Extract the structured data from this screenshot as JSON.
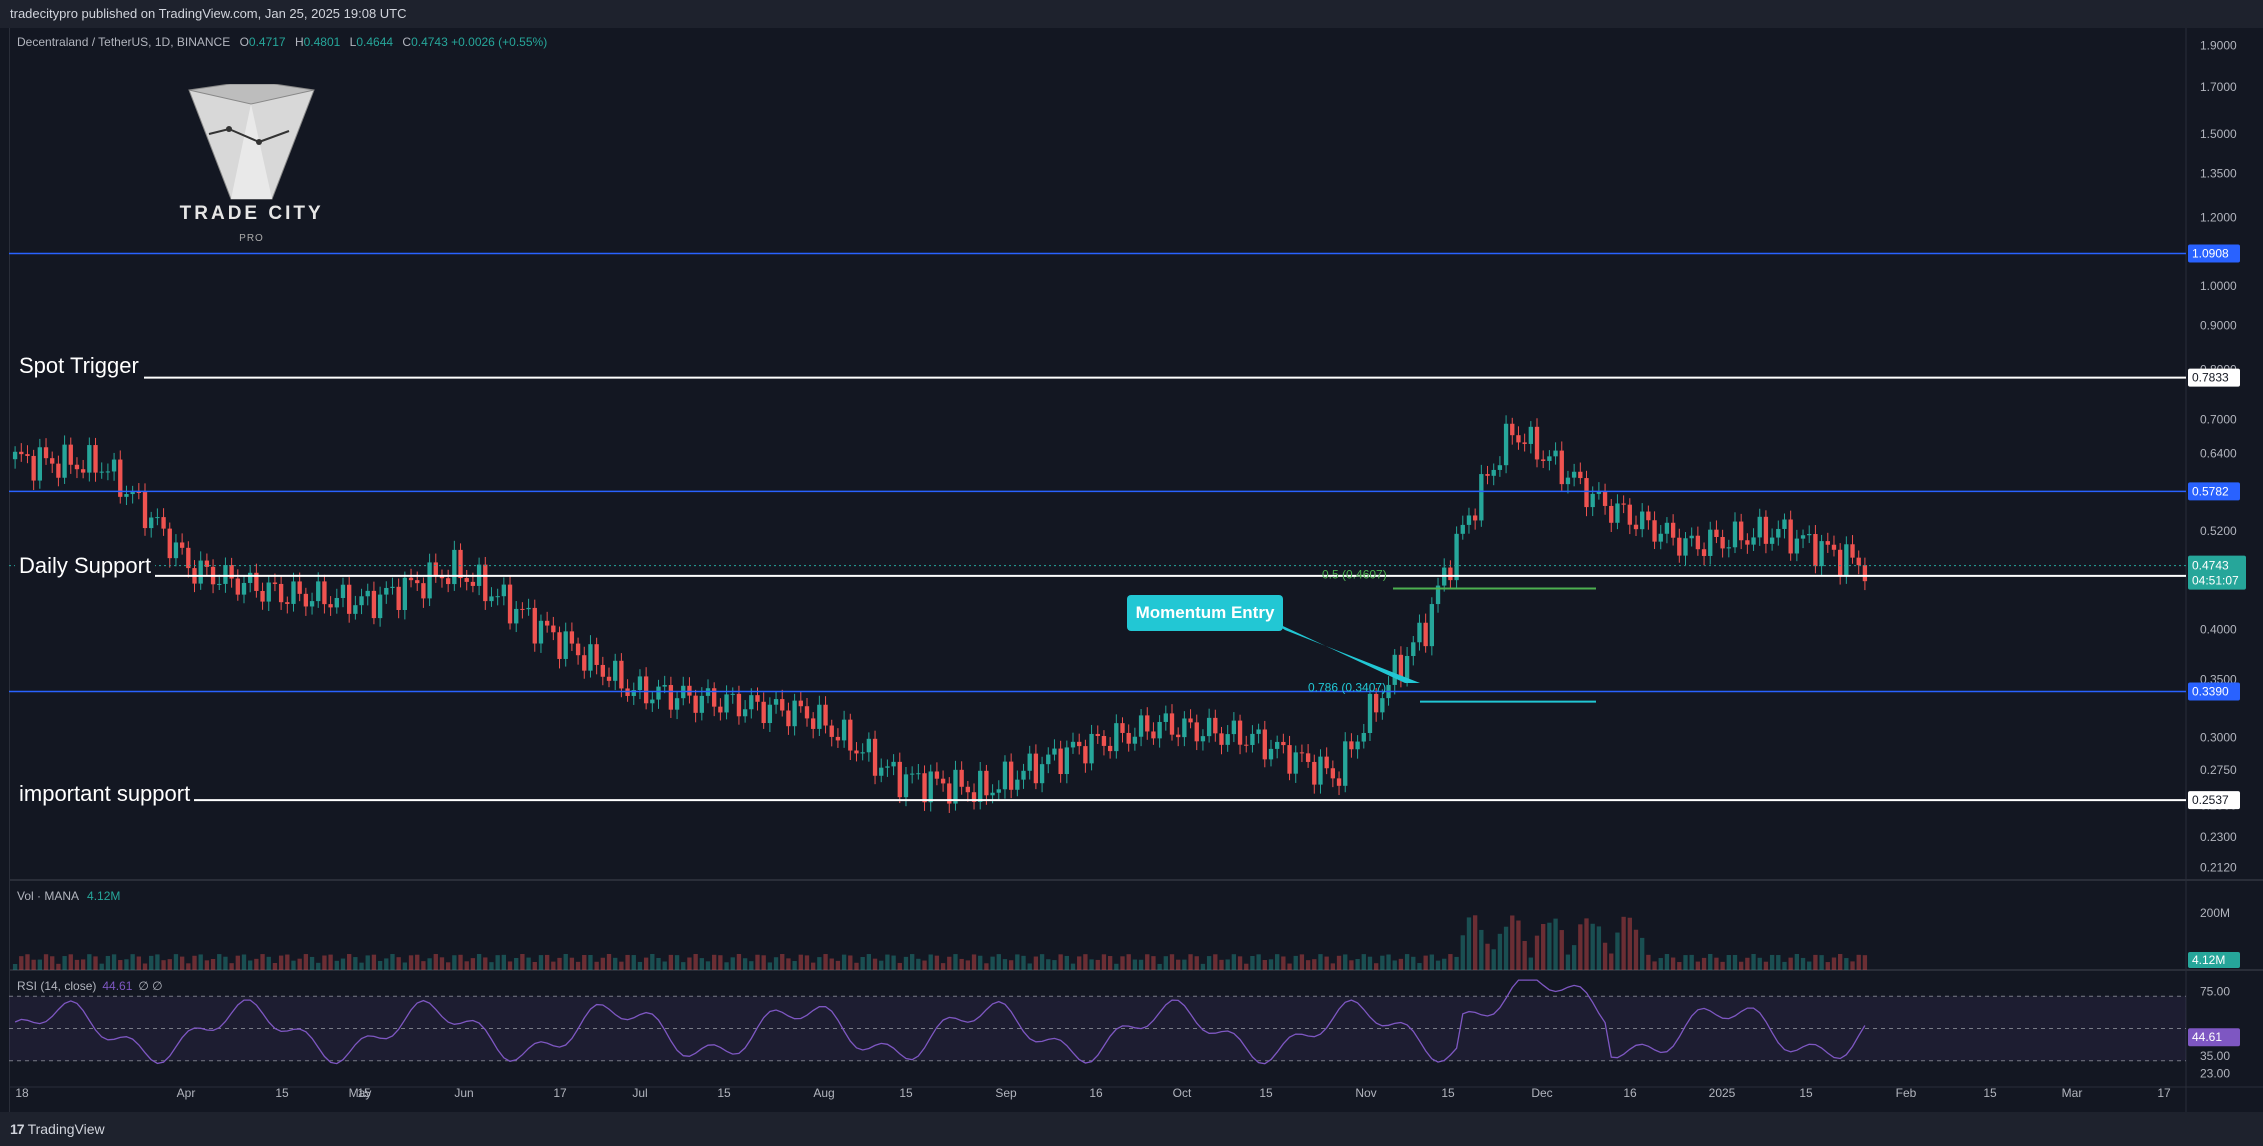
{
  "header": {
    "published_line": "tradecitypro published on TradingView.com, Jan 25, 2025 19:08 UTC"
  },
  "legend": {
    "symbol_line": "Decentraland / TetherUS, 1D, BINANCE",
    "open_label": "O",
    "open": "0.4717",
    "high_label": "H",
    "high": "0.4801",
    "low_label": "L",
    "low": "0.4644",
    "close_label": "C",
    "close": "0.4743",
    "change": "+0.0026 (+0.55%)"
  },
  "logo": {
    "name": "TRADE CITY",
    "suffix": "PRO"
  },
  "annotations": {
    "spot_trigger": "Spot Trigger",
    "daily_support": "Daily Support",
    "important_support": "important support",
    "momentum_entry": "Momentum Entry",
    "fib_05": "0.5 (0.4607)",
    "fib_0786": "0.786 (0.3407)"
  },
  "volume_pane": {
    "label": "Vol · MANA",
    "value": "4.12M",
    "axis_tick": "200M",
    "badge": "4.12M"
  },
  "rsi_pane": {
    "label": "RSI (14, close)",
    "value": "44.61",
    "extra": "∅ ∅",
    "ticks": [
      "75.00",
      "35.00",
      "23.00"
    ],
    "badge": "44.61"
  },
  "footer": {
    "brand": "TradingView",
    "mark": "17"
  },
  "colors": {
    "background": "#131722",
    "up": "#26a69a",
    "down": "#ef5350",
    "blue_line": "#2962ff",
    "white_line": "#ffffff",
    "rsi": "#7e57c2",
    "callout": "#22c7d4"
  },
  "chart_data": {
    "type": "candlestick",
    "symbol": "Decentraland / TetherUS, 1D, BINANCE",
    "y_scale": "log",
    "y_ticks": [
      "1.9000",
      "1.7000",
      "1.5000",
      "1.3500",
      "1.2000",
      "1.0000",
      "0.9000",
      "0.8000",
      "0.7000",
      "0.6400",
      "0.5800",
      "0.5200",
      "0.4600",
      "0.4000",
      "0.3500",
      "0.3000",
      "0.2750",
      "0.2500",
      "0.2300",
      "0.2120"
    ],
    "x_ticks": [
      "18",
      "Apr",
      "15",
      "May",
      "15",
      "Jun",
      "17",
      "Jul",
      "15",
      "Aug",
      "15",
      "Sep",
      "16",
      "Oct",
      "15",
      "Nov",
      "15",
      "Dec",
      "16",
      "2025",
      "15",
      "Feb",
      "15",
      "Mar",
      "17"
    ],
    "horizontal_levels": [
      {
        "value": "1.0908",
        "style": "blue"
      },
      {
        "value": "0.7833",
        "style": "white",
        "label": "Spot Trigger"
      },
      {
        "value": "0.5782",
        "style": "blue"
      },
      {
        "value": "0.4614",
        "style": "white",
        "label": "Daily Support"
      },
      {
        "value": "0.3390",
        "style": "blue"
      },
      {
        "value": "0.2537",
        "style": "white",
        "label": "important support"
      }
    ],
    "last_price": "0.4743",
    "countdown": "04:51:07",
    "approx_closes": [
      {
        "date": "2024-03-18",
        "close": 0.63
      },
      {
        "date": "2024-04-01",
        "close": 0.62
      },
      {
        "date": "2024-04-15",
        "close": 0.47
      },
      {
        "date": "2024-05-01",
        "close": 0.44
      },
      {
        "date": "2024-05-15",
        "close": 0.43
      },
      {
        "date": "2024-06-01",
        "close": 0.47
      },
      {
        "date": "2024-06-17",
        "close": 0.4
      },
      {
        "date": "2024-07-01",
        "close": 0.34
      },
      {
        "date": "2024-07-15",
        "close": 0.33
      },
      {
        "date": "2024-08-01",
        "close": 0.32
      },
      {
        "date": "2024-08-15",
        "close": 0.27
      },
      {
        "date": "2024-09-01",
        "close": 0.26
      },
      {
        "date": "2024-09-16",
        "close": 0.29
      },
      {
        "date": "2024-10-01",
        "close": 0.31
      },
      {
        "date": "2024-10-15",
        "close": 0.3
      },
      {
        "date": "2024-11-01",
        "close": 0.27
      },
      {
        "date": "2024-11-15",
        "close": 0.4
      },
      {
        "date": "2024-12-01",
        "close": 0.68
      },
      {
        "date": "2024-12-16",
        "close": 0.56
      },
      {
        "date": "2025-01-01",
        "close": 0.5
      },
      {
        "date": "2025-01-15",
        "close": 0.52
      },
      {
        "date": "2025-01-25",
        "close": 0.4743
      }
    ]
  }
}
